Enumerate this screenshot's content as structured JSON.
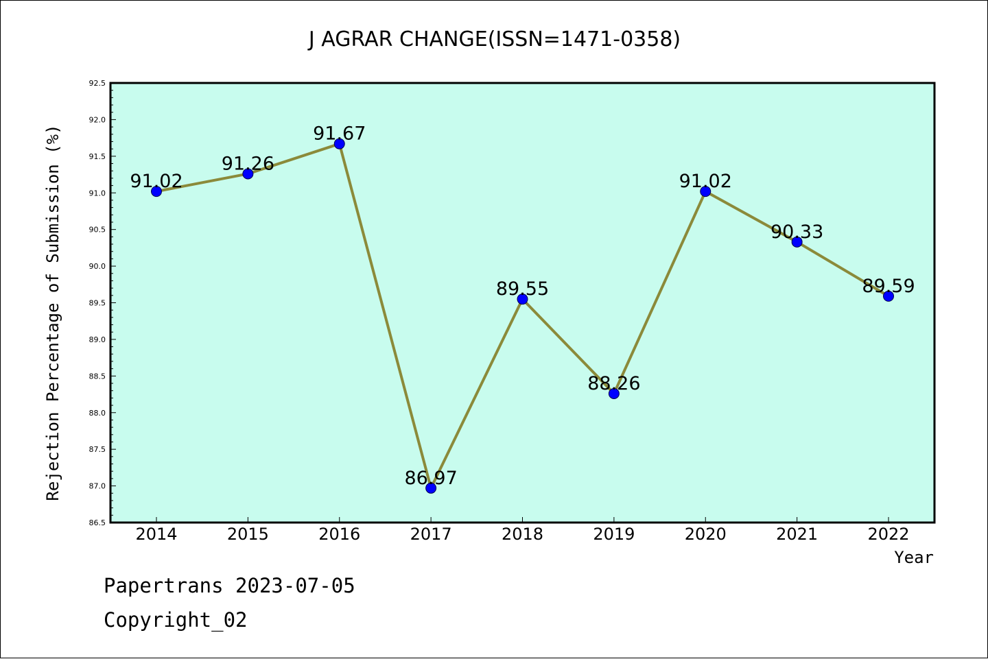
{
  "chart_data": {
    "type": "line",
    "title": "J AGRAR CHANGE(ISSN=1471-0358)",
    "xlabel": "Year",
    "ylabel": "Rejection Percentage of Submission (%)",
    "categories": [
      "2014",
      "2015",
      "2016",
      "2017",
      "2018",
      "2019",
      "2020",
      "2021",
      "2022"
    ],
    "values": [
      91.02,
      91.26,
      91.67,
      86.97,
      89.55,
      88.26,
      91.02,
      90.33,
      89.59
    ],
    "data_labels": [
      "91.02",
      "91.26",
      "91.67",
      "86.97",
      "89.55",
      "88.26",
      "91.02",
      "90.33",
      "89.59"
    ],
    "ylim": [
      86.5,
      92.5
    ],
    "yticks": [
      "86.5",
      "87.0",
      "87.5",
      "88.0",
      "88.5",
      "89.0",
      "89.5",
      "90.0",
      "90.5",
      "91.0",
      "91.5",
      "92.0",
      "92.5"
    ],
    "grid": false,
    "legend": "none",
    "colors": {
      "plot_background": "#c8fcee",
      "line": "#8b8a3a",
      "marker": "#0000ff"
    }
  },
  "footer": {
    "line1": "Papertrans 2023-07-05",
    "line2": "Copyright_02"
  }
}
